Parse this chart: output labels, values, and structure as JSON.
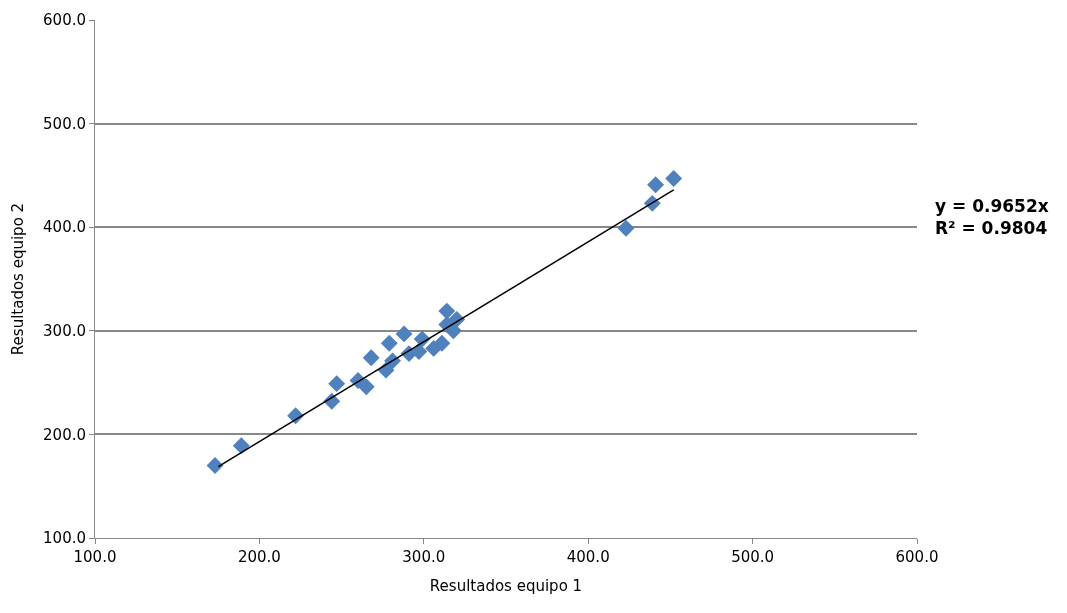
{
  "chart_data": {
    "type": "scatter",
    "xlabel": "Resultados equipo 1",
    "ylabel": "Resultados equipo 2",
    "xlim": [
      100,
      600
    ],
    "ylim": [
      100,
      600
    ],
    "xticks": [
      {
        "value": 100,
        "label": "100.0"
      },
      {
        "value": 200,
        "label": "200.0"
      },
      {
        "value": 300,
        "label": "300.0"
      },
      {
        "value": 400,
        "label": "400.0"
      },
      {
        "value": 500,
        "label": "500.0"
      },
      {
        "value": 600,
        "label": "600.0"
      }
    ],
    "yticks": [
      {
        "value": 100,
        "label": "100.0"
      },
      {
        "value": 200,
        "label": "200.0"
      },
      {
        "value": 300,
        "label": "300.0"
      },
      {
        "value": 400,
        "label": "400.0"
      },
      {
        "value": 500,
        "label": "500.0"
      },
      {
        "value": 600,
        "label": "600.0"
      }
    ],
    "grid": "y",
    "series": [
      {
        "marker": "diamond",
        "color": "#4f81bd",
        "x": [
          173,
          189,
          222,
          244,
          247,
          260,
          265,
          268,
          277,
          279,
          281,
          288,
          291,
          297,
          299,
          306,
          311,
          314,
          314,
          318,
          320,
          423,
          439,
          441,
          452
        ],
        "values": [
          170,
          189,
          218,
          232,
          249,
          252,
          246,
          274,
          262,
          288,
          271,
          297,
          278,
          280,
          292,
          283,
          288,
          306,
          319,
          300,
          311,
          399,
          423,
          441,
          447
        ]
      },
      {
        "type": "line",
        "color": "#000000",
        "x": [
          175,
          452
        ],
        "values": [
          169,
          436
        ]
      }
    ],
    "annotations": [
      "y = 0.9652x\nR² = 0.9804"
    ]
  }
}
